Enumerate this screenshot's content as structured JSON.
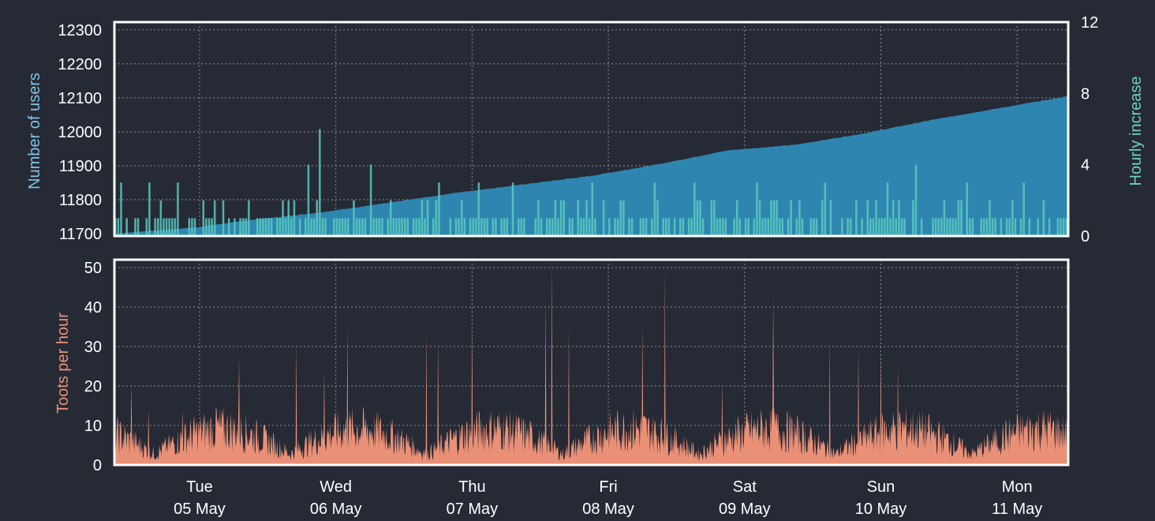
{
  "colors": {
    "background": "#262a35",
    "users_area": "#2e86b0",
    "hourly_increase": "#5ac9c0",
    "toots": "#ea9077",
    "frame": "#ffffff",
    "grid": "#8a8e96",
    "users_label": "#7fc4e4",
    "increase_label": "#6fd0c4",
    "toots_label": "#ea9077"
  },
  "chart_data": [
    {
      "type": "area",
      "title": "",
      "ylabel": "Number of users",
      "ylabel_right": "Hourly increase",
      "ylim": [
        11693,
        12323
      ],
      "ylim_right": [
        0,
        12
      ],
      "yticks": [
        "11700",
        "11800",
        "11900",
        "12000",
        "12100",
        "12200",
        "12300"
      ],
      "yticks_right": [
        "0",
        "4",
        "8",
        "12"
      ],
      "grid": true,
      "series": [
        {
          "axis": "left",
          "x_hours": [
            0,
            14,
            24,
            36,
            48,
            60,
            72,
            84,
            96,
            108,
            120,
            132,
            144,
            156,
            168
          ],
          "values": [
            11700,
            11718,
            11740,
            11762,
            11790,
            11820,
            11845,
            11870,
            11905,
            11945,
            11962,
            11995,
            12035,
            12070,
            12105
          ]
        },
        {
          "axis": "right",
          "type": "bar",
          "baseline": 1,
          "spikes": [
            [
              36,
              6.0
            ],
            [
              34,
              4.0
            ],
            [
              45,
              4.0
            ],
            [
              141,
              4.0
            ],
            [
              1,
              3.0
            ],
            [
              6,
              3.0
            ],
            [
              11,
              3.0
            ],
            [
              57,
              3.0
            ],
            [
              64,
              3.0
            ],
            [
              70,
              3.0
            ],
            [
              84,
              3.0
            ],
            [
              95,
              3.0
            ],
            [
              102,
              3.0
            ],
            [
              113,
              3.0
            ],
            [
              125,
              3.0
            ],
            [
              136,
              3.0
            ],
            [
              150,
              3.0
            ],
            [
              160,
              3.0
            ]
          ]
        }
      ]
    },
    {
      "type": "bar",
      "title": "",
      "ylabel": "Toots per hour",
      "ylim": [
        0,
        52
      ],
      "yticks": [
        "0",
        "10",
        "20",
        "30",
        "40",
        "50"
      ],
      "grid": true,
      "spikes": [
        [
          3,
          21
        ],
        [
          6,
          14
        ],
        [
          12,
          14
        ],
        [
          18,
          14
        ],
        [
          22,
          27
        ],
        [
          32,
          31
        ],
        [
          37,
          24
        ],
        [
          41,
          35
        ],
        [
          55,
          34
        ],
        [
          57,
          32
        ],
        [
          63,
          35
        ],
        [
          76,
          42
        ],
        [
          77,
          52
        ],
        [
          80,
          35
        ],
        [
          93,
          35
        ],
        [
          97,
          49
        ],
        [
          107,
          21
        ],
        [
          116,
          43
        ],
        [
          126,
          32
        ],
        [
          131,
          29
        ],
        [
          135,
          29
        ],
        [
          138,
          25
        ]
      ],
      "x_categories": [
        {
          "day": "Tue",
          "date": "05 May"
        },
        {
          "day": "Wed",
          "date": "06 May"
        },
        {
          "day": "Thu",
          "date": "07 May"
        },
        {
          "day": "Fri",
          "date": "08 May"
        },
        {
          "day": "Sat",
          "date": "09 May"
        },
        {
          "day": "Sun",
          "date": "10 May"
        },
        {
          "day": "Mon",
          "date": "11 May"
        }
      ]
    }
  ]
}
